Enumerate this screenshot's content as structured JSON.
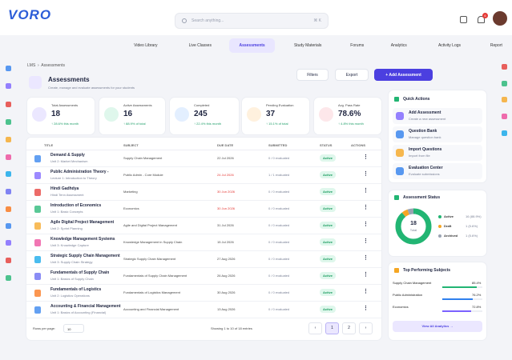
{
  "header": {
    "logo": "VORO",
    "search_placeholder": "Search anything...",
    "shortcut": "⌘ K",
    "notification_count": 6
  },
  "nav": [
    {
      "label": "Video Library"
    },
    {
      "label": "Live Classes"
    },
    {
      "label": "Assessments",
      "active": true
    },
    {
      "label": "Study Materials"
    },
    {
      "label": "Forums"
    },
    {
      "label": "Analytics"
    },
    {
      "label": "Activity Logs"
    },
    {
      "label": "Report"
    }
  ],
  "breadcrumb": [
    "LMS",
    "Assessments"
  ],
  "page": {
    "title": "Assessments",
    "subtitle": "Create, manage and evaluate assessments for your students",
    "buttons": [
      "Filters",
      "Export",
      "+ Add Assessment"
    ]
  },
  "stats": [
    {
      "label": "Total Assessments",
      "value": 18,
      "change": "↑ 28.6% this month"
    },
    {
      "label": "Active Assessments",
      "value": 16,
      "change": "↑ 88.9% of total"
    },
    {
      "label": "Completed",
      "value": 245,
      "change": "↑ 22.4% this month"
    },
    {
      "label": "Pending Evaluation",
      "value": 37,
      "change": "↑ 15.1% of total"
    },
    {
      "label": "Avg. Pass Rate",
      "value": "78.6%",
      "change": "↑ 4.8% this month"
    }
  ],
  "table": {
    "columns": [
      "TITLE",
      "SUBJECT",
      "DUE DATE",
      "SUBMITTED",
      "STATUS",
      "ACTIONS"
    ],
    "rows": [
      {
        "title": "Demand & Supply",
        "unit": "Unit 2: Market Mechanism",
        "subject": "Supply Chain Management",
        "due": "22 Jul 2026",
        "submitted": "0 / 0 evaluated",
        "status": "Active"
      },
      {
        "title": "Public Administration Theory -",
        "unit": "Lecture 1: Introduction to Theory",
        "subject": "Public Admin - Core Module",
        "due": "24 Jul 2026",
        "overdue": true,
        "submitted": "1 / 1 evaluated",
        "status": "Active"
      },
      {
        "title": "Hindi Gadhdya",
        "unit": "Hindi Tenn Assessment",
        "subject": "Marketing",
        "due": "30 Jun 2026",
        "overdue": true,
        "submitted": "0 / 0 evaluated",
        "status": "Active"
      },
      {
        "title": "Introduction of Economics",
        "unit": "Unit 1: Basic Concepts",
        "subject": "Economics",
        "due": "30 Jun 2026",
        "overdue": true,
        "submitted": "0 / 0 evaluated",
        "status": "Active"
      },
      {
        "title": "Agile Digital Project Management",
        "unit": "Unit 2: Sprint Planning",
        "subject": "Agile and Digital Project Management",
        "due": "31 Jul 2026",
        "submitted": "0 / 0 evaluated",
        "status": "Active"
      },
      {
        "title": "Knowledge Management Systems",
        "unit": "Unit 3: Knowledge Capture",
        "subject": "Knowledge Management in Supply Chain",
        "due": "15 Jul 2026",
        "submitted": "0 / 0 evaluated",
        "status": "Active"
      },
      {
        "title": "Strategic Supply Chain Management",
        "unit": "Unit 3: Supply Chain Strategy",
        "subject": "Strategic Supply Chain Management",
        "due": "27 Aug 2026",
        "submitted": "0 / 0 evaluated",
        "status": "Active"
      },
      {
        "title": "Fundamentals of Supply Chain",
        "unit": "Unit 1: Basics of Supply Chain",
        "subject": "Fundamentals of Supply Chain Management",
        "due": "26 Aug 2026",
        "submitted": "0 / 0 evaluated",
        "status": "Active"
      },
      {
        "title": "Fundamentals of Logistics",
        "unit": "Unit 2: Logistics Operations",
        "subject": "Fundamentals of Logistics Management",
        "due": "30 Aug 2026",
        "submitted": "0 / 0 evaluated",
        "status": "Active"
      },
      {
        "title": "Accounting & Financial Management",
        "unit": "Unit 1: Basics of Accounting (Financial)",
        "subject": "Accounting and Financial Management",
        "due": "13 Aug 2026",
        "submitted": "0 / 0 evaluated",
        "status": "Active"
      }
    ]
  },
  "pagination": {
    "rows_per_page_label": "Rows per page:",
    "rows_per_page": 10,
    "info": "Showing 1 to 10 of 18 entries",
    "pages": [
      1,
      2
    ]
  },
  "quick_actions": {
    "title": "Quick Actions",
    "items": [
      {
        "title": "Add Assessment",
        "desc": "Create a new assessment"
      },
      {
        "title": "Question Bank",
        "desc": "Manage question bank"
      },
      {
        "title": "Import Questions",
        "desc": "Import from file"
      },
      {
        "title": "Evaluation Center",
        "desc": "Evaluate submissions"
      }
    ]
  },
  "assessment_status": {
    "title": "Assessment Status",
    "total": 18,
    "total_label": "Total",
    "items": [
      {
        "name": "Active",
        "count": 16,
        "label": "16 (88.9%)",
        "color": "#22b573"
      },
      {
        "name": "Draft",
        "count": 1,
        "label": "1 (5.6%)",
        "color": "#f5a623"
      },
      {
        "name": "Archived",
        "count": 1,
        "label": "1 (5.6%)",
        "color": "#9aa3b2"
      }
    ]
  },
  "top_subjects": {
    "title": "Top Performing Subjects",
    "items": [
      {
        "name": "Supply Chain Management",
        "value": 85.4,
        "label": "85.4%",
        "color": "#22b573"
      },
      {
        "name": "Public Administration",
        "value": 76.2,
        "label": "76.2%",
        "color": "#2f80ed"
      },
      {
        "name": "Economics",
        "value": 72.8,
        "label": "72.8%",
        "color": "#7b61ff"
      }
    ],
    "link": "View All Analytics →"
  }
}
